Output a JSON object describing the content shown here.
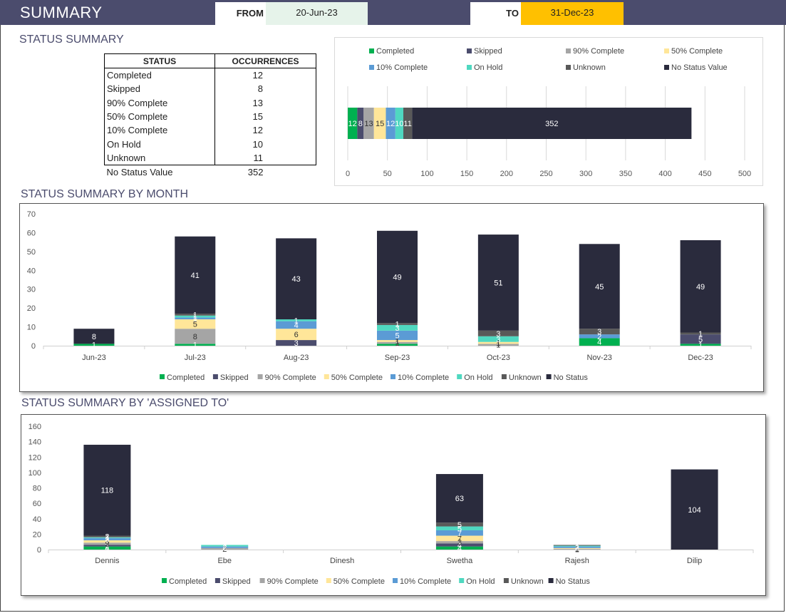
{
  "header": {
    "title": "SUMMARY",
    "from_label": "FROM",
    "from_value": "20-Jun-23",
    "to_label": "TO",
    "to_value": "31-Dec-23"
  },
  "sections": {
    "status_summary": "STATUS SUMMARY",
    "by_month": "STATUS SUMMARY BY MONTH",
    "by_assigned": "STATUS SUMMARY BY 'ASSIGNED TO'"
  },
  "table": {
    "headers": [
      "STATUS",
      "OCCURRENCES"
    ],
    "rows": [
      {
        "status": "Completed",
        "count": "12"
      },
      {
        "status": "Skipped",
        "count": "8"
      },
      {
        "status": "90% Complete",
        "count": "13"
      },
      {
        "status": "50% Complete",
        "count": "15"
      },
      {
        "status": "10% Complete",
        "count": "12"
      },
      {
        "status": "On Hold",
        "count": "10"
      },
      {
        "status": "Unknown",
        "count": "11"
      },
      {
        "status": "No Status Value",
        "count": "352"
      }
    ]
  },
  "colors": [
    "#00b050",
    "#4b4c6d",
    "#a5a5a5",
    "#ffe699",
    "#5b9bd5",
    "#4fd8c0",
    "#595959",
    "#2a2b3d"
  ],
  "chart_data": [
    {
      "type": "bar",
      "orientation": "horizontal-stacked",
      "series": [
        {
          "name": "Completed",
          "values": [
            12
          ]
        },
        {
          "name": "Skipped",
          "values": [
            8
          ]
        },
        {
          "name": "90% Complete",
          "values": [
            13
          ]
        },
        {
          "name": "50% Complete",
          "values": [
            15
          ]
        },
        {
          "name": "10% Complete",
          "values": [
            12
          ]
        },
        {
          "name": "On Hold",
          "values": [
            10
          ]
        },
        {
          "name": "Unknown",
          "values": [
            11
          ]
        },
        {
          "name": "No Status Value",
          "values": [
            352
          ]
        }
      ],
      "xlim": [
        0,
        500
      ],
      "ticks": [
        0,
        50,
        100,
        150,
        200,
        250,
        300,
        350,
        400,
        450,
        500
      ],
      "legend": "top",
      "grid": true
    },
    {
      "type": "bar",
      "orientation": "vertical-stacked",
      "categories": [
        "Jun-23",
        "Jul-23",
        "Aug-23",
        "Sep-23",
        "Oct-23",
        "Nov-23",
        "Dec-23"
      ],
      "series": [
        {
          "name": "Completed",
          "values": [
            1,
            1,
            0,
            1,
            0,
            4,
            1
          ]
        },
        {
          "name": "Skipped",
          "values": [
            0,
            0,
            3,
            0,
            0,
            0,
            5
          ]
        },
        {
          "name": "90% Complete",
          "values": [
            0,
            8,
            0,
            1,
            1,
            0,
            0
          ]
        },
        {
          "name": "50% Complete",
          "values": [
            0,
            5,
            6,
            1,
            1,
            0,
            0
          ]
        },
        {
          "name": "10% Complete",
          "values": [
            0,
            1,
            4,
            5,
            0,
            2,
            0
          ]
        },
        {
          "name": "On Hold",
          "values": [
            0,
            1,
            1,
            3,
            3,
            0,
            0
          ]
        },
        {
          "name": "Unknown",
          "values": [
            0,
            1,
            0,
            1,
            3,
            3,
            1
          ]
        },
        {
          "name": "No Status",
          "values": [
            8,
            41,
            43,
            49,
            51,
            45,
            49
          ]
        }
      ],
      "ylim": [
        0,
        70
      ],
      "yticks": [
        0,
        10,
        20,
        30,
        40,
        50,
        60,
        70
      ],
      "legend": "bottom",
      "grid": false
    },
    {
      "type": "bar",
      "orientation": "vertical-stacked",
      "categories": [
        "Dennis",
        "Ebe",
        "Dinesh",
        "Swetha",
        "Rajesh",
        "Dilip"
      ],
      "series": [
        {
          "name": "Completed",
          "values": [
            4,
            0,
            0,
            4,
            0,
            0
          ]
        },
        {
          "name": "Skipped",
          "values": [
            2,
            0,
            0,
            4,
            0,
            0
          ]
        },
        {
          "name": "90% Complete",
          "values": [
            3,
            2,
            0,
            3,
            1,
            0
          ]
        },
        {
          "name": "50% Complete",
          "values": [
            3,
            0,
            0,
            7,
            1,
            0
          ]
        },
        {
          "name": "10% Complete",
          "values": [
            3,
            2,
            0,
            7,
            2,
            0
          ]
        },
        {
          "name": "On Hold",
          "values": [
            1,
            2,
            0,
            5,
            1,
            0
          ]
        },
        {
          "name": "Unknown",
          "values": [
            2,
            0,
            0,
            5,
            1,
            0
          ]
        },
        {
          "name": "No Status",
          "values": [
            118,
            0,
            0,
            63,
            0,
            104
          ]
        }
      ],
      "ylim": [
        0,
        160
      ],
      "yticks": [
        0,
        20,
        40,
        60,
        80,
        100,
        120,
        140,
        160
      ],
      "legend": "bottom",
      "grid": false
    }
  ]
}
